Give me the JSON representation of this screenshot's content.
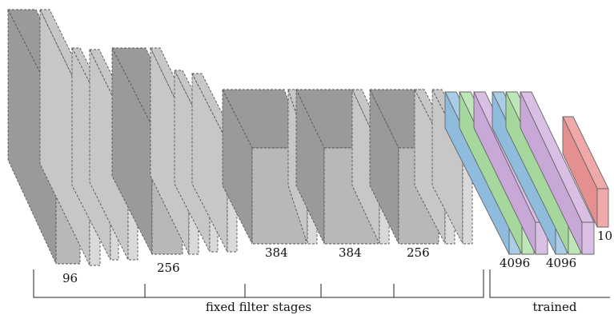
{
  "labels": {
    "conv1": "96",
    "conv2": "256",
    "conv3": "384",
    "conv4": "384",
    "conv5": "256",
    "fc6": "4096",
    "fc7": "4096",
    "out": "10"
  },
  "groups": {
    "fixed": "fixed filter stages",
    "trained": "trained"
  },
  "colors": {
    "blue": "#a9cde6",
    "green": "#bfe6b8",
    "purple": "#d8bfe3",
    "red": "#f0a9a9",
    "gray": "#b8b8b8"
  }
}
